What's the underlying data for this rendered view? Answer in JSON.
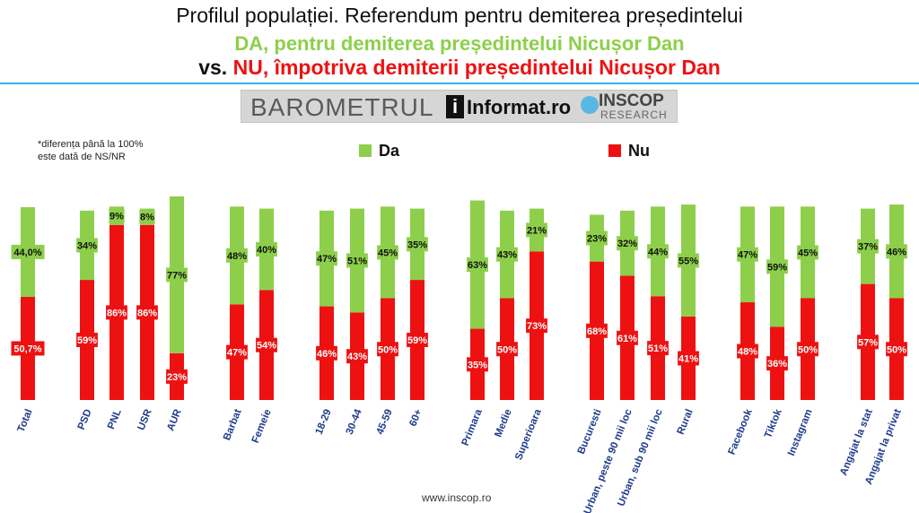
{
  "header": {
    "line1": "Profilul populației. Referendum pentru demiterea președintelui",
    "line2": "DA, pentru demiterea președintelui Nicușor Dan",
    "line3_vs": "vs.",
    "line3_nu": "NU, împotriva demiterii președintelui Nicușor Dan"
  },
  "logo": {
    "barometrul": "BAROMETRUL",
    "informat_icon": "i",
    "informat": "Informat.ro",
    "inscop": "INSCOP",
    "research": "RESEARCH"
  },
  "note": "*diferența până la 100% este dată de NS/NR",
  "legend": {
    "da": "Da",
    "nu": "Nu"
  },
  "footer": "www.inscop.ro",
  "colors": {
    "da": "#8dcf4a",
    "nu": "#ee1111",
    "rule": "#39b0e6"
  },
  "chart_data": {
    "type": "bar",
    "stacked": true,
    "categories": [
      "Total",
      "PSD",
      "PNL",
      "USR",
      "AUR",
      "Barbat",
      "Femeie",
      "18-29",
      "30-44",
      "45-59",
      "60+",
      "Primara",
      "Medie",
      "Superioara",
      "Bucuresti",
      "Urban, peste 90 mii loc",
      "Urban, sub 90 mii loc",
      "Rural",
      "Facebook",
      "Tiktok",
      "Instagram",
      "Angajat la stat",
      "Angajat la privat"
    ],
    "groups": [
      [
        0
      ],
      [
        1,
        2,
        3,
        4
      ],
      [
        5,
        6
      ],
      [
        7,
        8,
        9,
        10
      ],
      [
        11,
        12,
        13
      ],
      [
        14,
        15,
        16,
        17
      ],
      [
        18,
        19,
        20
      ],
      [
        21,
        22
      ]
    ],
    "series": [
      {
        "name": "Nu",
        "values": [
          50.7,
          59,
          86,
          86,
          23,
          47,
          54,
          46,
          43,
          50,
          59,
          35,
          50,
          73,
          68,
          61,
          51,
          41,
          48,
          36,
          50,
          57,
          50
        ],
        "labels": [
          "50,7%",
          "59%",
          "86%",
          "86%",
          "23%",
          "47%",
          "54%",
          "46%",
          "43%",
          "50%",
          "59%",
          "35%",
          "50%",
          "73%",
          "68%",
          "61%",
          "51%",
          "41%",
          "48%",
          "36%",
          "50%",
          "57%",
          "50%"
        ]
      },
      {
        "name": "Da",
        "values": [
          44.0,
          34,
          9,
          8,
          77,
          48,
          40,
          47,
          51,
          45,
          35,
          63,
          43,
          21,
          23,
          32,
          44,
          55,
          47,
          59,
          45,
          37,
          46
        ],
        "labels": [
          "44,0%",
          "34%",
          "9%",
          "8%",
          "77%",
          "48%",
          "40%",
          "47%",
          "51%",
          "45%",
          "35%",
          "63%",
          "43%",
          "21%",
          "23%",
          "32%",
          "44%",
          "55%",
          "47%",
          "59%",
          "45%",
          "37%",
          "46%"
        ]
      }
    ],
    "legend_position": "top",
    "grid": false
  }
}
